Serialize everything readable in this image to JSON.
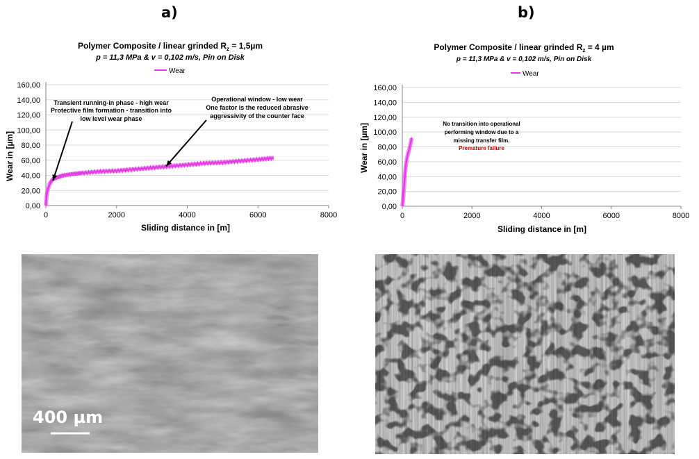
{
  "panels": {
    "a": {
      "label": "a)"
    },
    "b": {
      "label": "b)"
    }
  },
  "colors": {
    "wear": "#e23de2",
    "premature": "#c00000",
    "grid": "#d9d9d9",
    "axis": "#808080"
  },
  "chart_data": [
    {
      "type": "line",
      "title": "Polymer Composite / linear grinded R",
      "title_subscript": "z",
      "title_suffix": " = 1,5µm",
      "subtitle": "p = 11,3 MPa & v = 0,102 m/s, Pin on Disk",
      "legend": {
        "label": "Wear",
        "placement": "top"
      },
      "xlabel": "Sliding distance in [m]",
      "ylabel": "Wear in [µm]",
      "xlim": [
        0,
        8000
      ],
      "ylim": [
        0,
        160
      ],
      "xticks": [
        "0",
        "2000",
        "4000",
        "6000",
        "8000"
      ],
      "yticks": [
        "0,00",
        "20,00",
        "40,00",
        "60,00",
        "80,00",
        "100,00",
        "120,00",
        "140,00",
        "160,00"
      ],
      "grid": true,
      "series": [
        {
          "name": "Wear",
          "x": [
            0,
            20,
            50,
            100,
            150,
            200,
            300,
            500,
            800,
            1000,
            1500,
            2000,
            2500,
            3000,
            3500,
            4000,
            4500,
            5000,
            5500,
            6000,
            6450
          ],
          "y": [
            0,
            12,
            20,
            28,
            32,
            35,
            37,
            40,
            42,
            43,
            45,
            46,
            48,
            50,
            52,
            54,
            56,
            57,
            59,
            61,
            63
          ],
          "band": 3
        }
      ],
      "annotations": [
        {
          "lines": [
            "Transient running-in phase - high wear",
            "Protective film formation - transition into",
            "low level wear phase"
          ],
          "arrow_to": [
            200,
            33
          ]
        },
        {
          "lines": [
            "Operational window - low wear",
            "One factor is the reduced abrasive",
            "aggressivity of the counter face"
          ],
          "arrow_to": [
            3400,
            52
          ]
        }
      ]
    },
    {
      "type": "line",
      "title": "Polymer Composite / linear grinded R",
      "title_subscript": "z",
      "title_suffix": " = 4 µm",
      "subtitle": "p = 11,3 MPa & v = 0,102 m/s, Pin on Disk",
      "legend": {
        "label": "Wear",
        "placement": "top"
      },
      "xlabel": "Sliding distance in [m]",
      "ylabel": "Wear in [µm]",
      "xlim": [
        0,
        8000
      ],
      "ylim": [
        0,
        160
      ],
      "xticks": [
        "0",
        "2000",
        "4000",
        "6000",
        "8000"
      ],
      "yticks": [
        "0,00",
        "20,00",
        "40,00",
        "60,00",
        "80,00",
        "100,00",
        "120,00",
        "140,00",
        "160,00"
      ],
      "grid": true,
      "series": [
        {
          "name": "Wear",
          "x": [
            0,
            20,
            40,
            60,
            80,
            100,
            130,
            160,
            200,
            240,
            270
          ],
          "y": [
            0,
            8,
            20,
            32,
            45,
            55,
            64,
            70,
            77,
            85,
            92
          ],
          "band": 2
        }
      ],
      "annotations": [
        {
          "lines": [
            "No transition into operational",
            "performing window due to a",
            "missing transfer film."
          ],
          "highlight": "Premature failure"
        }
      ]
    }
  ],
  "images": {
    "a": {
      "caption": "micrograph",
      "scalebar": "400 µm"
    },
    "b": {
      "caption": "micrograph"
    }
  }
}
